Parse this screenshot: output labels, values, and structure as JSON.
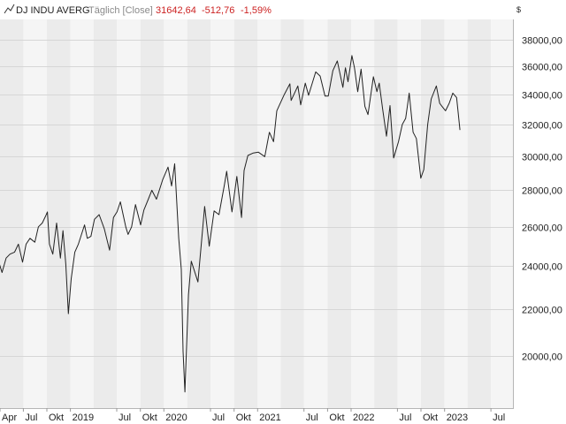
{
  "header": {
    "name": "DJ INDU AVERG",
    "mode": "Täglich [Close]",
    "last": "31642,64",
    "change": "-512,76",
    "change_pct": "-1,59%",
    "currency": "$"
  },
  "colors": {
    "line": "#222222",
    "band_dark": "#ebebeb",
    "band_light": "#f5f5f5",
    "grid": "#d6d6d6",
    "negative": "#cc2222"
  },
  "chart_data": {
    "type": "line",
    "title": "DJ INDU AVERG",
    "subtitle": "Täglich [Close]",
    "xlabel": "",
    "ylabel": "",
    "y_scale": "log",
    "ylim": [
      18000,
      39600
    ],
    "xlim": [
      "2018-04-01",
      "2023-09-25"
    ],
    "grid": true,
    "legend": "none",
    "y_ticks": [
      "38000,00",
      "36000,00",
      "34000,00",
      "32000,00",
      "30000,00",
      "28000,00",
      "26000,00",
      "24000,00",
      "22000,00",
      "20000,00"
    ],
    "y_tick_values": [
      38000,
      36000,
      34000,
      32000,
      30000,
      28000,
      26000,
      24000,
      22000,
      20000
    ],
    "x_ticks": [
      {
        "label": "Apr",
        "date": "2018-04-01"
      },
      {
        "label": "Jul",
        "date": "2018-07-01"
      },
      {
        "label": "Okt",
        "date": "2018-10-01"
      },
      {
        "label": "2019",
        "date": "2019-01-01"
      },
      {
        "label": "Jul",
        "date": "2019-07-01"
      },
      {
        "label": "Okt",
        "date": "2019-10-01"
      },
      {
        "label": "2020",
        "date": "2020-01-01"
      },
      {
        "label": "Jul",
        "date": "2020-07-01"
      },
      {
        "label": "Okt",
        "date": "2020-10-01"
      },
      {
        "label": "2021",
        "date": "2021-01-01"
      },
      {
        "label": "Jul",
        "date": "2021-07-01"
      },
      {
        "label": "Okt",
        "date": "2021-10-01"
      },
      {
        "label": "2022",
        "date": "2022-01-01"
      },
      {
        "label": "Jul",
        "date": "2022-07-01"
      },
      {
        "label": "Okt",
        "date": "2022-10-01"
      },
      {
        "label": "2023",
        "date": "2023-01-01"
      },
      {
        "label": "Jul",
        "date": "2023-07-01"
      }
    ],
    "series": [
      {
        "x": [
          "2018-03-30",
          "2018-04-09",
          "2018-04-25",
          "2018-05-10",
          "2018-05-28",
          "2018-06-12",
          "2018-06-28",
          "2018-07-12",
          "2018-07-27",
          "2018-08-15",
          "2018-08-29",
          "2018-09-13",
          "2018-09-27",
          "2018-10-03",
          "2018-10-11",
          "2018-10-24",
          "2018-11-08",
          "2018-11-23",
          "2018-12-03",
          "2018-12-14",
          "2018-12-24",
          "2019-01-04",
          "2019-01-18",
          "2019-02-01",
          "2019-02-25",
          "2019-03-08",
          "2019-03-22",
          "2019-04-05",
          "2019-04-23",
          "2019-05-13",
          "2019-06-03",
          "2019-06-18",
          "2019-07-02",
          "2019-07-15",
          "2019-08-05",
          "2019-08-14",
          "2019-08-28",
          "2019-09-12",
          "2019-10-02",
          "2019-10-15",
          "2019-11-01",
          "2019-11-15",
          "2019-12-03",
          "2019-12-27",
          "2020-01-17",
          "2020-01-31",
          "2020-02-12",
          "2020-02-28",
          "2020-03-09",
          "2020-03-16",
          "2020-03-23",
          "2020-04-06",
          "2020-04-17",
          "2020-05-13",
          "2020-06-08",
          "2020-06-26",
          "2020-07-15",
          "2020-08-03",
          "2020-08-24",
          "2020-09-02",
          "2020-09-23",
          "2020-10-12",
          "2020-10-30",
          "2020-11-09",
          "2020-11-24",
          "2020-12-15",
          "2021-01-04",
          "2021-01-29",
          "2021-02-16",
          "2021-03-04",
          "2021-03-17",
          "2021-04-15",
          "2021-05-07",
          "2021-05-12",
          "2021-06-07",
          "2021-06-18",
          "2021-07-06",
          "2021-07-19",
          "2021-08-16",
          "2021-09-02",
          "2021-09-21",
          "2021-10-04",
          "2021-10-22",
          "2021-11-08",
          "2021-11-30",
          "2021-12-10",
          "2021-12-20",
          "2022-01-04",
          "2022-01-14",
          "2022-01-27",
          "2022-02-09",
          "2022-02-24",
          "2022-03-08",
          "2022-03-29",
          "2022-04-12",
          "2022-04-21",
          "2022-05-04",
          "2022-05-19",
          "2022-06-02",
          "2022-06-16",
          "2022-07-05",
          "2022-07-20",
          "2022-08-02",
          "2022-08-16",
          "2022-08-31",
          "2022-09-13",
          "2022-09-30",
          "2022-10-12",
          "2022-10-27",
          "2022-11-10",
          "2022-11-30",
          "2022-12-13",
          "2022-12-22",
          "2023-01-05",
          "2023-01-19",
          "2023-02-02",
          "2023-02-17",
          "2023-03-02"
        ],
        "y": [
          24100,
          23700,
          24400,
          24600,
          24700,
          25100,
          24200,
          25100,
          25400,
          25200,
          26000,
          26200,
          26600,
          26800,
          25100,
          24600,
          26200,
          24400,
          25800,
          24100,
          21800,
          23400,
          24700,
          25100,
          26100,
          25400,
          25500,
          26400,
          26650,
          25900,
          24800,
          26500,
          26800,
          27350,
          26000,
          25600,
          26000,
          27200,
          26100,
          26900,
          27500,
          28000,
          27500,
          28600,
          29350,
          28250,
          29550,
          25400,
          23850,
          20200,
          18600,
          22650,
          24250,
          23250,
          27100,
          25000,
          26850,
          26650,
          28300,
          29100,
          26800,
          28800,
          26500,
          29150,
          30050,
          30200,
          30250,
          29980,
          31500,
          30900,
          32900,
          34000,
          34750,
          33600,
          34600,
          33300,
          34800,
          33950,
          35600,
          35300,
          33900,
          33900,
          35700,
          36400,
          34500,
          35900,
          34900,
          36800,
          35900,
          34200,
          35800,
          33200,
          32650,
          35250,
          34200,
          34800,
          33050,
          31250,
          33250,
          29900,
          30900,
          32000,
          32400,
          34100,
          31500,
          31100,
          28700,
          29200,
          32000,
          33700,
          34600,
          33400,
          33200,
          32900,
          33400,
          34100,
          33800,
          31642
        ]
      }
    ]
  }
}
